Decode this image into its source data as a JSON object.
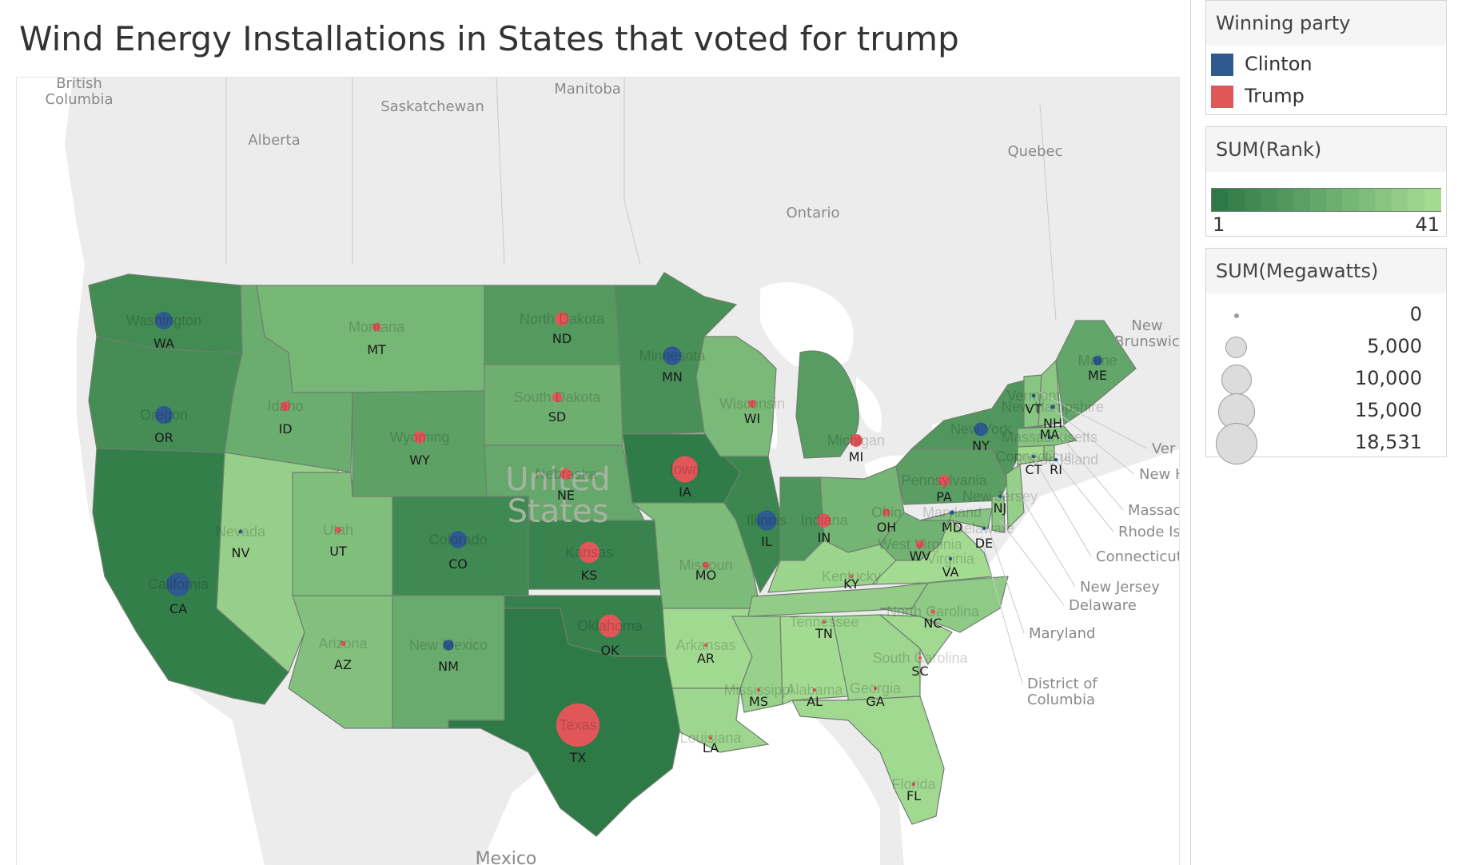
{
  "title": "Wind Energy Installations in States that voted for trump",
  "colors": {
    "clinton": "#2e5a8f",
    "trump": "#e15759",
    "land": "#e9e9e9",
    "water": "#ffffff",
    "rank_low": "#2d7a46",
    "rank_high": "#a4db93"
  },
  "legends": {
    "party": {
      "title": "Winning party",
      "items": [
        {
          "label": "Clinton",
          "color": "#2e5a8f"
        },
        {
          "label": "Trump",
          "color": "#e15759"
        }
      ]
    },
    "rank": {
      "title": "SUM(Rank)",
      "min_label": "1",
      "max_label": "41"
    },
    "size": {
      "title": "SUM(Megawatts)",
      "values": [
        "0",
        "5,000",
        "10,000",
        "15,000",
        "18,531"
      ]
    }
  },
  "geo_labels": {
    "british_columbia": "British\nColumbia",
    "alberta": "Alberta",
    "saskatchewan": "Saskatchewan",
    "manitoba": "Manitoba",
    "ontario": "Ontario",
    "quebec": "Quebec",
    "new_brunswick": "New\nBrunswic",
    "united_states": "United\nStates",
    "mexico": "Mexico"
  },
  "ne_callouts": [
    "Ver",
    "New H",
    "Massac",
    "Rhode Is",
    "Connecticut",
    "New Jersey",
    "Delaware",
    "Maryland",
    "District of\nColumbia"
  ],
  "states": [
    {
      "abbr": "WA",
      "name": "Washington",
      "rank": 8,
      "mw": 3075,
      "party": "Clinton"
    },
    {
      "abbr": "OR",
      "name": "Oregon",
      "rank": 9,
      "mw": 3163,
      "party": "Clinton"
    },
    {
      "abbr": "CA",
      "name": "California",
      "rank": 3,
      "mw": 5662,
      "party": "Clinton"
    },
    {
      "abbr": "ID",
      "name": "Idaho",
      "rank": 22,
      "mw": 973,
      "party": "Trump"
    },
    {
      "abbr": "NV",
      "name": "Nevada",
      "rank": 36,
      "mw": 152,
      "party": "Clinton"
    },
    {
      "abbr": "MT",
      "name": "Montana",
      "rank": 26,
      "mw": 695,
      "party": "Trump"
    },
    {
      "abbr": "WY",
      "name": "Wyoming",
      "rank": 17,
      "mw": 1489,
      "party": "Trump"
    },
    {
      "abbr": "UT",
      "name": "Utah",
      "rank": 29,
      "mw": 391,
      "party": "Trump"
    },
    {
      "abbr": "AZ",
      "name": "Arizona",
      "rank": 30,
      "mw": 268,
      "party": "Trump"
    },
    {
      "abbr": "CO",
      "name": "Colorado",
      "rank": 7,
      "mw": 3026,
      "party": "Clinton"
    },
    {
      "abbr": "NM",
      "name": "New Mexico",
      "rank": 21,
      "mw": 1112,
      "party": "Clinton"
    },
    {
      "abbr": "ND",
      "name": "North Dakota",
      "rank": 14,
      "mw": 1886,
      "party": "Trump"
    },
    {
      "abbr": "SD",
      "name": "South Dakota",
      "rank": 23,
      "mw": 977,
      "party": "Trump"
    },
    {
      "abbr": "NE",
      "name": "Nebraska",
      "rank": 20,
      "mw": 1328,
      "party": "Trump"
    },
    {
      "abbr": "KS",
      "name": "Kansas",
      "rank": 5,
      "mw": 4451,
      "party": "Trump"
    },
    {
      "abbr": "OK",
      "name": "Oklahoma",
      "rank": 4,
      "mw": 5184,
      "party": "Trump"
    },
    {
      "abbr": "TX",
      "name": "Texas",
      "rank": 1,
      "mw": 18531,
      "party": "Trump"
    },
    {
      "abbr": "MN",
      "name": "Minnesota",
      "rank": 10,
      "mw": 3499,
      "party": "Clinton"
    },
    {
      "abbr": "IA",
      "name": "Iowa",
      "rank": 2,
      "mw": 6917,
      "party": "Trump"
    },
    {
      "abbr": "MO",
      "name": "Missouri",
      "rank": 28,
      "mw": 459,
      "party": "Trump"
    },
    {
      "abbr": "AR",
      "name": "Arkansas",
      "rank": 40,
      "mw": 0,
      "party": "Trump"
    },
    {
      "abbr": "LA",
      "name": "Louisiana",
      "rank": 39,
      "mw": 0,
      "party": "Trump"
    },
    {
      "abbr": "WI",
      "name": "Wisconsin",
      "rank": 27,
      "mw": 648,
      "party": "Trump"
    },
    {
      "abbr": "IL",
      "name": "Illinois",
      "rank": 6,
      "mw": 4026,
      "party": "Clinton"
    },
    {
      "abbr": "MI",
      "name": "Michigan",
      "rank": 15,
      "mw": 1611,
      "party": "Trump"
    },
    {
      "abbr": "IN",
      "name": "Indiana",
      "rank": 12,
      "mw": 1895,
      "party": "Trump"
    },
    {
      "abbr": "OH",
      "name": "Ohio",
      "rank": 25,
      "mw": 545,
      "party": "Trump"
    },
    {
      "abbr": "KY",
      "name": "Kentucky",
      "rank": 38,
      "mw": 0,
      "party": "Trump"
    },
    {
      "abbr": "TN",
      "name": "Tennessee",
      "rank": 35,
      "mw": 29,
      "party": "Trump"
    },
    {
      "abbr": "MS",
      "name": "Mississippi",
      "rank": 37,
      "mw": 0,
      "party": "Trump"
    },
    {
      "abbr": "AL",
      "name": "Alabama",
      "rank": 41,
      "mw": 0,
      "party": "Trump"
    },
    {
      "abbr": "GA",
      "name": "Georgia",
      "rank": 39,
      "mw": 0,
      "party": "Trump"
    },
    {
      "abbr": "FL",
      "name": "Florida",
      "rank": 40,
      "mw": 0,
      "party": "Trump"
    },
    {
      "abbr": "SC",
      "name": "South Carolina",
      "rank": 40,
      "mw": 0,
      "party": "Trump"
    },
    {
      "abbr": "NC",
      "name": "North Carolina",
      "rank": 34,
      "mw": 208,
      "party": "Trump"
    },
    {
      "abbr": "VA",
      "name": "Virginia",
      "rank": 41,
      "mw": 0,
      "party": "Clinton"
    },
    {
      "abbr": "WV",
      "name": "West Virginia",
      "rank": 24,
      "mw": 686,
      "party": "Trump"
    },
    {
      "abbr": "PA",
      "name": "Pennsylvania",
      "rank": 16,
      "mw": 1340,
      "party": "Trump"
    },
    {
      "abbr": "NY",
      "name": "New York",
      "rank": 13,
      "mw": 1827,
      "party": "Clinton"
    },
    {
      "abbr": "MD",
      "name": "Maryland",
      "rank": 31,
      "mw": 191,
      "party": "Clinton"
    },
    {
      "abbr": "DE",
      "name": "Delaware",
      "rank": 33,
      "mw": 2,
      "party": "Clinton"
    },
    {
      "abbr": "NJ",
      "name": "New Jersey",
      "rank": 36,
      "mw": 9,
      "party": "Clinton"
    },
    {
      "abbr": "CT",
      "name": "Connecticut",
      "rank": 40,
      "mw": 5,
      "party": "Clinton"
    },
    {
      "abbr": "RI",
      "name": "Rhode Island",
      "rank": 35,
      "mw": 45,
      "party": "Clinton"
    },
    {
      "abbr": "MA",
      "name": "Massachusetts",
      "rank": 31,
      "mw": 115,
      "party": "Clinton"
    },
    {
      "abbr": "VT",
      "name": "Vermont",
      "rank": 32,
      "mw": 149,
      "party": "Clinton"
    },
    {
      "abbr": "NH",
      "name": "New Hampshire",
      "rank": 33,
      "mw": 185,
      "party": "Clinton"
    },
    {
      "abbr": "ME",
      "name": "Maine",
      "rank": 19,
      "mw": 901,
      "party": "Clinton"
    }
  ]
}
